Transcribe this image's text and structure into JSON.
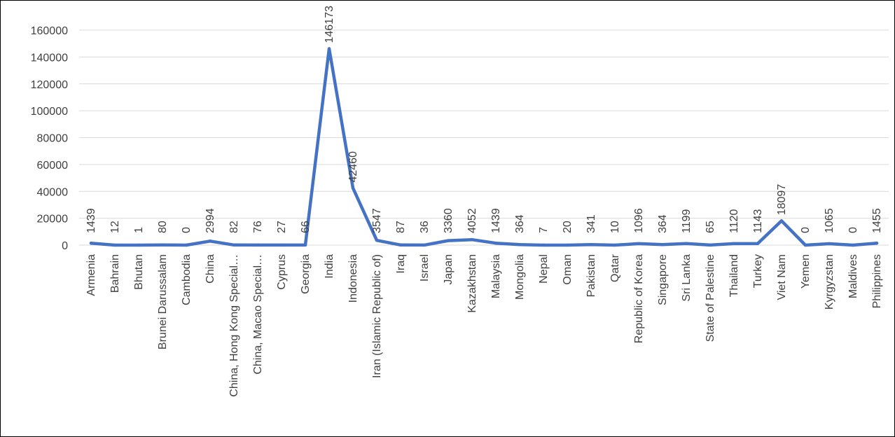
{
  "chart_data": {
    "type": "line",
    "title": "",
    "xlabel": "",
    "ylabel": "",
    "ylim": [
      0,
      160000
    ],
    "yticks": [
      0,
      20000,
      40000,
      60000,
      80000,
      100000,
      120000,
      140000,
      160000
    ],
    "ytick_labels": [
      "0",
      "20000",
      "40000",
      "60000",
      "80000",
      "100000",
      "120000",
      "140000",
      "160000"
    ],
    "grid": "horizontal",
    "legend": "none",
    "line_color": "#4472C4",
    "categories": [
      "Armenia",
      "Bahrain",
      "Bhutan",
      "Brunei Darussalam",
      "Cambodia",
      "China",
      "China, Hong Kong Special…",
      "China, Macao Special…",
      "Cyprus",
      "Georgia",
      "India",
      "Indonesia",
      "Iran (Islamic Republic of)",
      "Iraq",
      "Israel",
      "Japan",
      "Kazakhstan",
      "Malaysia",
      "Mongolia",
      "Nepal",
      "Oman",
      "Pakistan",
      "Qatar",
      "Republic of Korea",
      "Singapore",
      "Sri Lanka",
      "State of Palestine",
      "Thailand",
      "Turkey",
      "Viet Nam",
      "Yemen",
      "Kyrgyzstan",
      "Maldives",
      "Philippines"
    ],
    "series": [
      {
        "values": [
          1439,
          12,
          1,
          80,
          0,
          2994,
          82,
          76,
          27,
          66,
          146173,
          42460,
          3547,
          87,
          36,
          3360,
          4052,
          1439,
          364,
          7,
          20,
          341,
          10,
          1096,
          364,
          1199,
          65,
          1120,
          1143,
          18097,
          0,
          1065,
          0,
          1455
        ],
        "data_labels": [
          "1439",
          "12",
          "1",
          "80",
          "0",
          "2994",
          "82",
          "76",
          "27",
          "66",
          "146173",
          "42460",
          "3547",
          "87",
          "36",
          "3360",
          "4052",
          "1439",
          "364",
          "7",
          "20",
          "341",
          "10",
          "1096",
          "364",
          "1199",
          "65",
          "1120",
          "1143",
          "18097",
          "0",
          "1065",
          "0",
          "1455"
        ]
      }
    ]
  }
}
